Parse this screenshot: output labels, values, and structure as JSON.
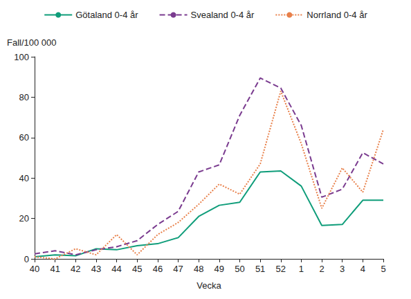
{
  "chart_data": {
    "type": "line",
    "x_label": "Vecka",
    "y_label": "Fall/100 000",
    "categories": [
      "40",
      "41",
      "42",
      "43",
      "44",
      "45",
      "46",
      "47",
      "48",
      "49",
      "50",
      "51",
      "52",
      "1",
      "2",
      "3",
      "4",
      "5"
    ],
    "series": [
      {
        "name": "Götaland 0-4 år",
        "color": "#0f9d7a",
        "line_style": "solid",
        "values": [
          1,
          2,
          1.5,
          5,
          4.5,
          6.5,
          7.5,
          10.5,
          21,
          26.5,
          28,
          43,
          43.5,
          36,
          16.5,
          17,
          29,
          29
        ]
      },
      {
        "name": "Svealand 0-4 år",
        "color": "#7a3b8f",
        "line_style": "dashed",
        "values": [
          2.5,
          4,
          2,
          4.5,
          6,
          9,
          17,
          23.5,
          43,
          46.5,
          71,
          89.5,
          84.5,
          66,
          30.5,
          34.5,
          52.5,
          47
        ]
      },
      {
        "name": "Norrland 0-4 år",
        "color": "#e8804a",
        "line_style": "dotted",
        "values": [
          1,
          0,
          5,
          2,
          12,
          2,
          12,
          18,
          27,
          37,
          32,
          47,
          83,
          57,
          25,
          45,
          33,
          64
        ]
      }
    ],
    "ylim": [
      0,
      100
    ],
    "yticks": [
      0,
      20,
      40,
      60,
      80,
      100
    ],
    "grid": false,
    "legend": "top",
    "marker": "none"
  }
}
